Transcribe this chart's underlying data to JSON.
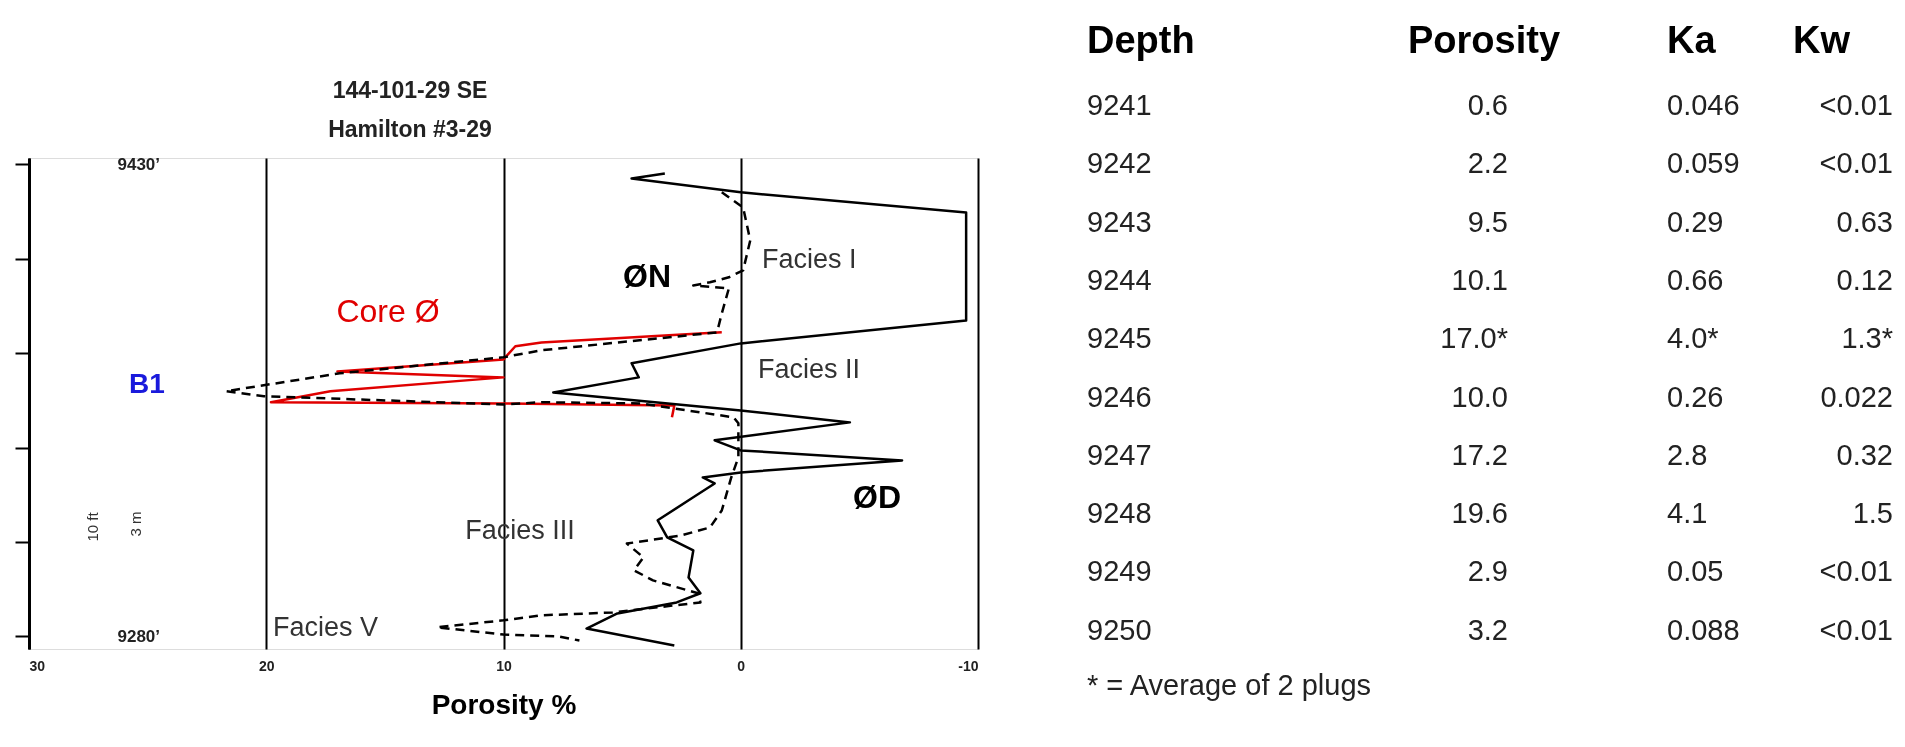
{
  "chart_data": {
    "type": "line",
    "title": "144-101-29 SE",
    "subtitle": "Hamilton #3-29",
    "xlabel": "Porosity %",
    "xlim": [
      30,
      -10
    ],
    "xticks": [
      30,
      20,
      10,
      0,
      -10
    ],
    "ylim": [
      9276,
      9432
    ],
    "yticks": [
      {
        "value": 9430,
        "label": "9430’"
      },
      {
        "value": 9400,
        "label": null
      },
      {
        "value": 9370,
        "label": null
      },
      {
        "value": 9340,
        "label": null
      },
      {
        "value": 9310,
        "label": null
      },
      {
        "value": 9280,
        "label": "9280’"
      }
    ],
    "grid": "x",
    "series": [
      {
        "name": "Core Ø",
        "color": "#e00000",
        "line_style": "solid",
        "x": [
          0.8,
          8.4,
          9.5,
          10.0,
          17.0,
          10.0,
          17.3,
          19.8,
          10.0,
          2.8,
          2.9
        ],
        "values": [
          9376.6,
          9373.4,
          9372.2,
          9368.0,
          9364.2,
          9362.3,
          9357.9,
          9354.4,
          9354.0,
          9353.4,
          9349.6
        ]
      },
      {
        "name": "ØN",
        "color": "#000000",
        "line_style": "dashed",
        "x": [
          0.8,
          -0.1,
          -0.4,
          -0.1,
          0.5,
          1.3,
          2.0,
          0.5,
          0.8,
          1.0,
          8.4,
          10.0,
          16.9,
          21.7,
          20.1,
          10.0,
          8.4,
          4.2,
          0.3,
          0.1,
          0.1,
          0.4,
          0.8,
          1.3,
          2.5,
          4.8,
          4.1,
          4.5,
          3.7,
          1.8,
          1.7,
          5.4,
          8.4,
          10.0,
          12.8,
          10.0,
          7.7,
          6.8
        ],
        "values": [
          9421.1,
          9416.3,
          9405.8,
          9396.3,
          9394.1,
          9392.5,
          9391.5,
          9390.6,
          9382.6,
          9376.6,
          9370.9,
          9368.7,
          9363.6,
          9357.9,
          9356.3,
          9353.7,
          9354.4,
          9354.0,
          9349.6,
          9347.7,
          9336.9,
          9330.5,
          9320.0,
          9314.6,
          9312.1,
          9309.5,
          9305.1,
          9301.0,
          9297.8,
          9293.7,
          9290.8,
          9287.6,
          9286.7,
          9285.1,
          9282.9,
          9280.6,
          9280.0,
          9278.7
        ]
      },
      {
        "name": "ØD",
        "color": "#000000",
        "line_style": "solid",
        "x": [
          3.2,
          4.6,
          0.0,
          -9.5,
          -9.5,
          0.0,
          4.6,
          4.3,
          7.9,
          0.0,
          -4.6,
          1.1,
          0.0,
          -6.8,
          0.0,
          1.6,
          1.1,
          2.0,
          3.5,
          3.1,
          2.0,
          2.2,
          1.7,
          2.7,
          5.2,
          6.5,
          2.8
        ],
        "values": [
          9427.1,
          9425.5,
          9421.1,
          9414.7,
          9380.4,
          9373.1,
          9366.8,
          9362.3,
          9357.5,
          9351.8,
          9348.0,
          9342.3,
          9339.1,
          9335.9,
          9332.1,
          9330.5,
          9328.6,
          9324.2,
          9316.9,
          9311.5,
          9307.3,
          9298.7,
          9293.7,
          9290.8,
          9287.3,
          9282.5,
          9277.1
        ]
      }
    ],
    "annotations": [
      "B1",
      "Facies I",
      "Facies II",
      "Facies III",
      "Facies V",
      "10 ft",
      "3 m",
      "Depth",
      "Porosity",
      "Ka",
      "Kw",
      "9241",
      "0.6",
      "0.046",
      "<0.01",
      "9242",
      "2.2",
      "0.059",
      "<0.01",
      "9243",
      "9.5",
      "0.29",
      "0.63",
      "9244",
      "10.1",
      "0.66",
      "0.12",
      "9245",
      "17.0*",
      "4.0*",
      "1.3*",
      "9246",
      "10.0",
      "0.26",
      "0.022",
      "9247",
      "17.2",
      "2.8",
      "0.32",
      "9248",
      "19.6",
      "4.1",
      "1.5",
      "9249",
      "2.9",
      "0.05",
      "<0.01",
      "9250",
      "3.2",
      "0.088",
      "<0.01",
      "* = Average of 2 plugs"
    ]
  }
}
